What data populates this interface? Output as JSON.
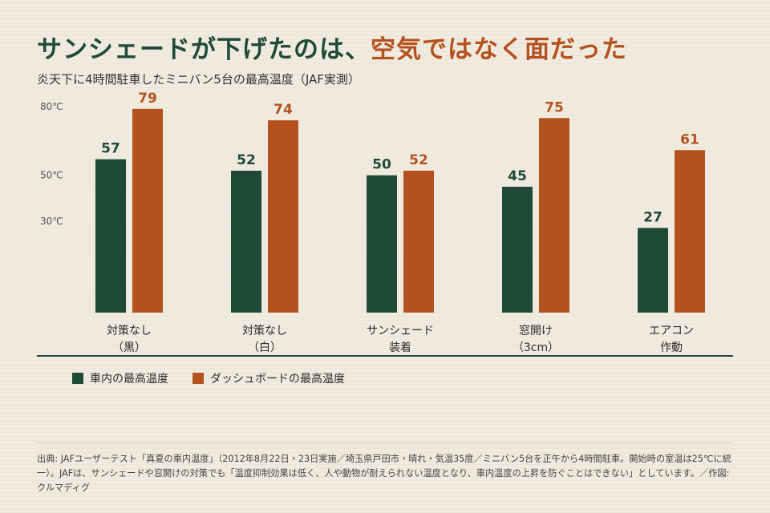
{
  "header": {
    "title_main": "サンシェードが下げたのは、",
    "title_accent": "空気ではなく面だった",
    "subtitle": "炎天下に4時間駐車したミニバン5台の最高温度（JAF実測）"
  },
  "colors": {
    "cabin": "#1f4a38",
    "dashboard": "#b4521f",
    "axis": "#1f4a38"
  },
  "chart_data": {
    "type": "bar",
    "categories": [
      [
        "対策なし",
        "（黒）"
      ],
      [
        "対策なし",
        "（白）"
      ],
      [
        "サンシェード",
        "装着"
      ],
      [
        "窓開け",
        "（3cm）"
      ],
      [
        "エアコン",
        "作動"
      ]
    ],
    "series": [
      {
        "name": "車内の最高温度",
        "values": [
          57,
          52,
          50,
          45,
          27
        ]
      },
      {
        "name": "ダッシュボードの最高温度",
        "values": [
          79,
          74,
          52,
          75,
          61
        ]
      }
    ],
    "y_ticks": [
      {
        "value": 80,
        "label": "80℃"
      },
      {
        "value": 50,
        "label": "50℃"
      },
      {
        "value": 30,
        "label": "30℃"
      }
    ],
    "ylim": [
      -10,
      80
    ],
    "grid": false,
    "legend": "bottom-left"
  },
  "source": "出典: JAFユーザーテスト「真夏の車内温度」（2012年8月22日・23日実施／埼玉県戸田市・晴れ・気温35度／ミニバン5台を正午から4時間駐車。開始時の室温は25℃に統一）。JAFは、サンシェードや窓開けの対策でも「温度抑制効果は低く、人や動物が耐えられない温度となり、車内温度の上昇を防ぐことはできない」としています。／作図: クルマディグ"
}
